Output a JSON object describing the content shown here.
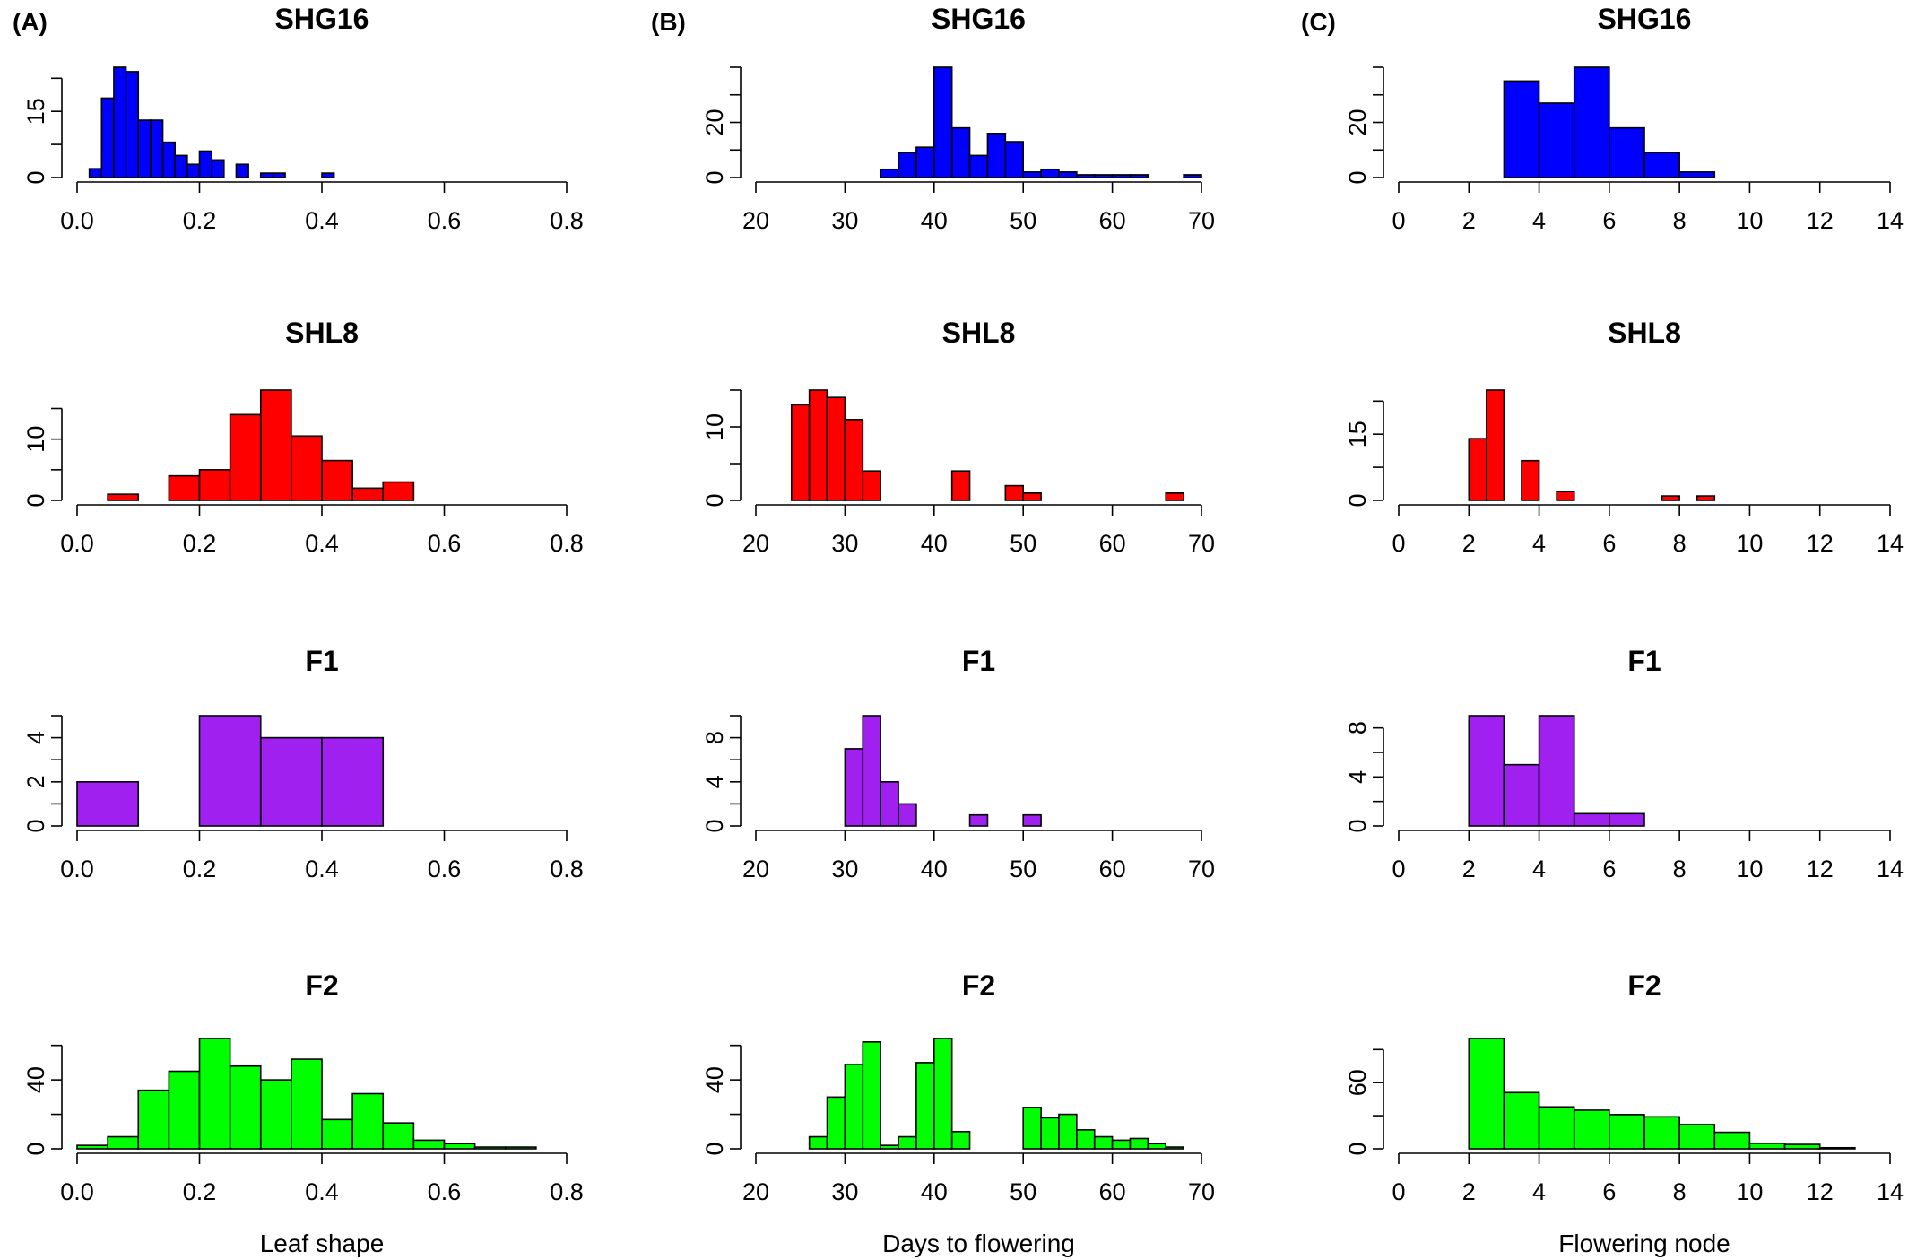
{
  "panel_labels": [
    "(A)",
    "(B)",
    "(C)"
  ],
  "colors": {
    "SHG16": "#0000ff",
    "SHL8": "#ff0000",
    "F1": "#a020f0",
    "F2": "#00ff00"
  },
  "chart_data": [
    {
      "type": "bar",
      "chart_type": "histogram",
      "column": 0,
      "row": 0,
      "title": "SHG16",
      "xlabel": "",
      "xlim": [
        0,
        0.8
      ],
      "ylim": [
        0,
        25
      ],
      "color": "#0000ff",
      "x_ticks": [
        0,
        0.2,
        0.4,
        0.6,
        0.8
      ],
      "x_tick_labels": [
        "0.0",
        "0.2",
        "0.4",
        "0.6",
        "0.8"
      ],
      "y_ticks": [
        0,
        15
      ],
      "bins": [
        [
          0.02,
          0.04,
          2
        ],
        [
          0.04,
          0.06,
          18
        ],
        [
          0.06,
          0.08,
          25
        ],
        [
          0.08,
          0.1,
          24
        ],
        [
          0.1,
          0.12,
          13
        ],
        [
          0.12,
          0.14,
          13
        ],
        [
          0.14,
          0.16,
          8
        ],
        [
          0.16,
          0.18,
          5
        ],
        [
          0.18,
          0.2,
          3
        ],
        [
          0.2,
          0.22,
          6
        ],
        [
          0.22,
          0.24,
          4
        ],
        [
          0.24,
          0.26,
          0
        ],
        [
          0.26,
          0.28,
          3
        ],
        [
          0.28,
          0.3,
          0
        ],
        [
          0.3,
          0.32,
          1
        ],
        [
          0.32,
          0.34,
          1
        ],
        [
          0.34,
          0.36,
          0
        ],
        [
          0.36,
          0.38,
          0
        ],
        [
          0.38,
          0.4,
          0
        ],
        [
          0.4,
          0.42,
          1
        ]
      ]
    },
    {
      "type": "bar",
      "chart_type": "histogram",
      "column": 0,
      "row": 1,
      "title": "SHL8",
      "xlabel": "",
      "xlim": [
        0,
        0.8
      ],
      "ylim": [
        0,
        18
      ],
      "color": "#ff0000",
      "x_ticks": [
        0,
        0.2,
        0.4,
        0.6,
        0.8
      ],
      "x_tick_labels": [
        "0.0",
        "0.2",
        "0.4",
        "0.6",
        "0.8"
      ],
      "y_ticks": [
        0,
        10
      ],
      "bins": [
        [
          0.05,
          0.1,
          1
        ],
        [
          0.1,
          0.15,
          0
        ],
        [
          0.15,
          0.2,
          4
        ],
        [
          0.2,
          0.25,
          5
        ],
        [
          0.25,
          0.3,
          14
        ],
        [
          0.3,
          0.35,
          18
        ],
        [
          0.35,
          0.4,
          10.5
        ],
        [
          0.4,
          0.45,
          6.5
        ],
        [
          0.45,
          0.5,
          2
        ],
        [
          0.5,
          0.55,
          3
        ]
      ]
    },
    {
      "type": "bar",
      "chart_type": "histogram",
      "column": 0,
      "row": 2,
      "title": "F1",
      "xlabel": "",
      "xlim": [
        0,
        0.8
      ],
      "ylim": [
        0,
        5
      ],
      "color": "#a020f0",
      "x_ticks": [
        0,
        0.2,
        0.4,
        0.6,
        0.8
      ],
      "x_tick_labels": [
        "0.0",
        "0.2",
        "0.4",
        "0.6",
        "0.8"
      ],
      "y_ticks": [
        0,
        2,
        4
      ],
      "bins": [
        [
          0,
          0.1,
          2
        ],
        [
          0.1,
          0.2,
          0
        ],
        [
          0.2,
          0.3,
          5
        ],
        [
          0.3,
          0.4,
          4
        ],
        [
          0.4,
          0.5,
          4
        ]
      ]
    },
    {
      "type": "bar",
      "chart_type": "histogram",
      "column": 0,
      "row": 3,
      "title": "F2",
      "xlabel": "Leaf shape",
      "xlim": [
        0,
        0.8
      ],
      "ylim": [
        0,
        64
      ],
      "color": "#00ff00",
      "x_ticks": [
        0,
        0.2,
        0.4,
        0.6,
        0.8
      ],
      "x_tick_labels": [
        "0.0",
        "0.2",
        "0.4",
        "0.6",
        "0.8"
      ],
      "y_ticks": [
        0,
        40
      ],
      "bins": [
        [
          0,
          0.05,
          2
        ],
        [
          0.05,
          0.1,
          7
        ],
        [
          0.1,
          0.15,
          34
        ],
        [
          0.15,
          0.2,
          45
        ],
        [
          0.2,
          0.25,
          64
        ],
        [
          0.25,
          0.3,
          48
        ],
        [
          0.3,
          0.35,
          40
        ],
        [
          0.35,
          0.4,
          52
        ],
        [
          0.4,
          0.45,
          17
        ],
        [
          0.45,
          0.5,
          32
        ],
        [
          0.5,
          0.55,
          15
        ],
        [
          0.55,
          0.6,
          5
        ],
        [
          0.6,
          0.65,
          3
        ],
        [
          0.65,
          0.7,
          1
        ],
        [
          0.7,
          0.75,
          1
        ]
      ]
    },
    {
      "type": "bar",
      "chart_type": "histogram",
      "column": 1,
      "row": 0,
      "title": "SHG16",
      "xlabel": "",
      "xlim": [
        20,
        70
      ],
      "ylim": [
        0,
        40
      ],
      "color": "#0000ff",
      "x_ticks": [
        20,
        30,
        40,
        50,
        60,
        70
      ],
      "x_tick_labels": [
        "20",
        "30",
        "40",
        "50",
        "60",
        "70"
      ],
      "y_ticks": [
        0,
        20
      ],
      "bins": [
        [
          34,
          36,
          3
        ],
        [
          36,
          38,
          9
        ],
        [
          38,
          40,
          11
        ],
        [
          40,
          42,
          40
        ],
        [
          42,
          44,
          18
        ],
        [
          44,
          46,
          8
        ],
        [
          46,
          48,
          16
        ],
        [
          48,
          50,
          13
        ],
        [
          50,
          52,
          2
        ],
        [
          52,
          54,
          3
        ],
        [
          54,
          56,
          2
        ],
        [
          56,
          58,
          1
        ],
        [
          58,
          60,
          1
        ],
        [
          60,
          62,
          1
        ],
        [
          62,
          64,
          1
        ],
        [
          64,
          66,
          0
        ],
        [
          66,
          68,
          0
        ],
        [
          68,
          70,
          1
        ]
      ]
    },
    {
      "type": "bar",
      "chart_type": "histogram",
      "column": 1,
      "row": 1,
      "title": "SHL8",
      "xlabel": "",
      "xlim": [
        20,
        70
      ],
      "ylim": [
        0,
        15
      ],
      "color": "#ff0000",
      "x_ticks": [
        20,
        30,
        40,
        50,
        60,
        70
      ],
      "x_tick_labels": [
        "20",
        "30",
        "40",
        "50",
        "60",
        "70"
      ],
      "y_ticks": [
        0,
        10
      ],
      "bins": [
        [
          24,
          26,
          13
        ],
        [
          26,
          28,
          15
        ],
        [
          28,
          30,
          14
        ],
        [
          30,
          32,
          11
        ],
        [
          32,
          34,
          4
        ],
        [
          34,
          36,
          0
        ],
        [
          36,
          38,
          0
        ],
        [
          38,
          40,
          0
        ],
        [
          40,
          42,
          0
        ],
        [
          42,
          44,
          4
        ],
        [
          44,
          46,
          0
        ],
        [
          46,
          48,
          0
        ],
        [
          48,
          50,
          2
        ],
        [
          50,
          52,
          1
        ],
        [
          52,
          54,
          0
        ],
        [
          54,
          56,
          0
        ],
        [
          56,
          58,
          0
        ],
        [
          58,
          60,
          0
        ],
        [
          60,
          62,
          0
        ],
        [
          62,
          64,
          0
        ],
        [
          64,
          66,
          0
        ],
        [
          66,
          68,
          1
        ]
      ]
    },
    {
      "type": "bar",
      "chart_type": "histogram",
      "column": 1,
      "row": 2,
      "title": "F1",
      "xlabel": "",
      "xlim": [
        20,
        70
      ],
      "ylim": [
        0,
        10
      ],
      "color": "#a020f0",
      "x_ticks": [
        20,
        30,
        40,
        50,
        60,
        70
      ],
      "x_tick_labels": [
        "20",
        "30",
        "40",
        "50",
        "60",
        "70"
      ],
      "y_ticks": [
        0,
        4,
        8
      ],
      "bins": [
        [
          30,
          32,
          7
        ],
        [
          32,
          34,
          10
        ],
        [
          34,
          36,
          4
        ],
        [
          36,
          38,
          2
        ],
        [
          38,
          40,
          0
        ],
        [
          40,
          42,
          0
        ],
        [
          42,
          44,
          0
        ],
        [
          44,
          46,
          1
        ],
        [
          46,
          48,
          0
        ],
        [
          48,
          50,
          0
        ],
        [
          50,
          52,
          1
        ]
      ]
    },
    {
      "type": "bar",
      "chart_type": "histogram",
      "column": 1,
      "row": 3,
      "title": "F2",
      "xlabel": "Days to flowering",
      "xlim": [
        20,
        70
      ],
      "ylim": [
        0,
        64
      ],
      "color": "#00ff00",
      "x_ticks": [
        20,
        30,
        40,
        50,
        60,
        70
      ],
      "x_tick_labels": [
        "20",
        "30",
        "40",
        "50",
        "60",
        "70"
      ],
      "y_ticks": [
        0,
        40
      ],
      "bins": [
        [
          26,
          28,
          7
        ],
        [
          28,
          30,
          30
        ],
        [
          30,
          32,
          49
        ],
        [
          32,
          34,
          62
        ],
        [
          34,
          36,
          2
        ],
        [
          36,
          38,
          7
        ],
        [
          38,
          40,
          50
        ],
        [
          40,
          42,
          64
        ],
        [
          42,
          44,
          10
        ],
        [
          44,
          46,
          0
        ],
        [
          46,
          48,
          0
        ],
        [
          48,
          50,
          0
        ],
        [
          50,
          52,
          24
        ],
        [
          52,
          54,
          18
        ],
        [
          54,
          56,
          20
        ],
        [
          56,
          58,
          11
        ],
        [
          58,
          60,
          7
        ],
        [
          60,
          62,
          5
        ],
        [
          62,
          64,
          6
        ],
        [
          64,
          66,
          3
        ],
        [
          66,
          68,
          1
        ]
      ]
    },
    {
      "type": "bar",
      "chart_type": "histogram",
      "column": 2,
      "row": 0,
      "title": "SHG16",
      "xlabel": "",
      "xlim": [
        0,
        14
      ],
      "ylim": [
        0,
        40
      ],
      "color": "#0000ff",
      "x_ticks": [
        0,
        2,
        4,
        6,
        8,
        10,
        12,
        14
      ],
      "x_tick_labels": [
        "0",
        "2",
        "4",
        "6",
        "8",
        "10",
        "12",
        "14"
      ],
      "y_ticks": [
        0,
        20
      ],
      "bins": [
        [
          3,
          4,
          35
        ],
        [
          4,
          5,
          27
        ],
        [
          5,
          6,
          40
        ],
        [
          6,
          7,
          18
        ],
        [
          7,
          8,
          9
        ],
        [
          8,
          9,
          2
        ]
      ]
    },
    {
      "type": "bar",
      "chart_type": "histogram",
      "column": 2,
      "row": 1,
      "title": "SHL8",
      "xlabel": "",
      "xlim": [
        0,
        14
      ],
      "ylim": [
        0,
        25
      ],
      "color": "#ff0000",
      "x_ticks": [
        0,
        2,
        4,
        6,
        8,
        10,
        12,
        14
      ],
      "x_tick_labels": [
        "0",
        "2",
        "4",
        "6",
        "8",
        "10",
        "12",
        "14"
      ],
      "y_ticks": [
        0,
        15
      ],
      "bins": [
        [
          2,
          2.5,
          14
        ],
        [
          2.5,
          3,
          25
        ],
        [
          3,
          3.5,
          0
        ],
        [
          3.5,
          4,
          9
        ],
        [
          4,
          4.5,
          0
        ],
        [
          4.5,
          5,
          2
        ],
        [
          5,
          5.5,
          0
        ],
        [
          5.5,
          6,
          0
        ],
        [
          6,
          6.5,
          0
        ],
        [
          6.5,
          7,
          0
        ],
        [
          7,
          7.5,
          0
        ],
        [
          7.5,
          8,
          1
        ],
        [
          8,
          8.5,
          0
        ],
        [
          8.5,
          9,
          1
        ]
      ]
    },
    {
      "type": "bar",
      "chart_type": "histogram",
      "column": 2,
      "row": 2,
      "title": "F1",
      "xlabel": "",
      "xlim": [
        0,
        14
      ],
      "ylim": [
        0,
        9
      ],
      "color": "#a020f0",
      "x_ticks": [
        0,
        2,
        4,
        6,
        8,
        10,
        12,
        14
      ],
      "x_tick_labels": [
        "0",
        "2",
        "4",
        "6",
        "8",
        "10",
        "12",
        "14"
      ],
      "y_ticks": [
        0,
        4,
        8
      ],
      "bins": [
        [
          2,
          3,
          9
        ],
        [
          3,
          4,
          5
        ],
        [
          4,
          5,
          9
        ],
        [
          5,
          6,
          1
        ],
        [
          6,
          7,
          1
        ]
      ]
    },
    {
      "type": "bar",
      "chart_type": "histogram",
      "column": 2,
      "row": 3,
      "title": "F2",
      "xlabel": "Flowering node",
      "xlim": [
        0,
        14
      ],
      "ylim": [
        0,
        100
      ],
      "color": "#00ff00",
      "x_ticks": [
        0,
        2,
        4,
        6,
        8,
        10,
        12,
        14
      ],
      "x_tick_labels": [
        "0",
        "2",
        "4",
        "6",
        "8",
        "10",
        "12",
        "14"
      ],
      "y_ticks": [
        0,
        60
      ],
      "bins": [
        [
          2,
          3,
          100
        ],
        [
          3,
          4,
          51
        ],
        [
          4,
          5,
          38
        ],
        [
          5,
          6,
          35
        ],
        [
          6,
          7,
          31
        ],
        [
          7,
          8,
          29
        ],
        [
          8,
          9,
          22
        ],
        [
          9,
          10,
          15
        ],
        [
          10,
          11,
          5
        ],
        [
          11,
          12,
          4
        ],
        [
          12,
          13,
          1
        ]
      ]
    }
  ]
}
